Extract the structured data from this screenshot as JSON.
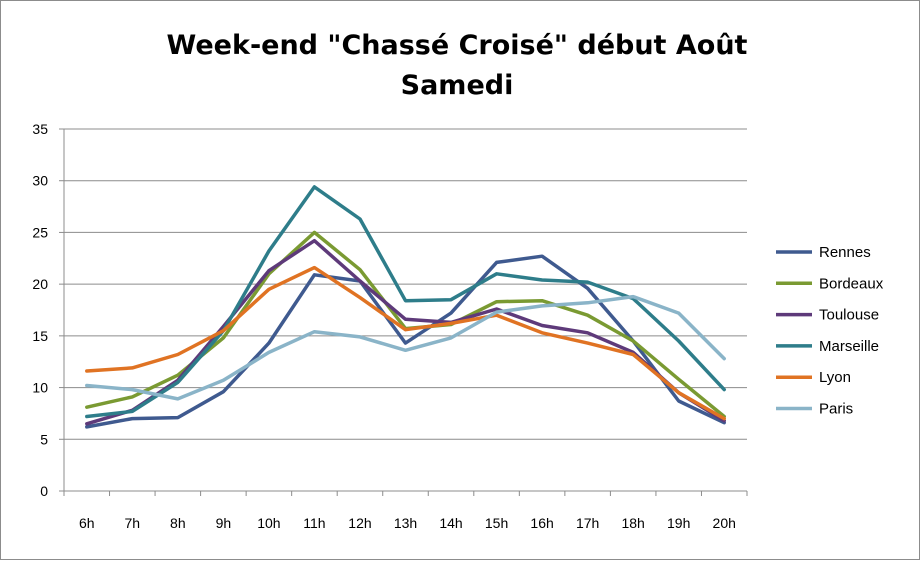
{
  "chart_data": {
    "type": "line",
    "title": "Week-end \"Chassé Croisé\" début Août",
    "subtitle": "Samedi",
    "x": [
      "6h",
      "7h",
      "8h",
      "9h",
      "10h",
      "11h",
      "12h",
      "13h",
      "14h",
      "15h",
      "16h",
      "17h",
      "18h",
      "19h",
      "20h"
    ],
    "ylim": [
      0,
      35
    ],
    "yticks": [
      0,
      5,
      10,
      15,
      20,
      25,
      30,
      35
    ],
    "grid": true,
    "legend_position": "right",
    "series": [
      {
        "name": "Rennes",
        "color": "#3f5a8f",
        "values": [
          6.2,
          7.0,
          7.1,
          9.6,
          14.3,
          20.9,
          20.3,
          14.3,
          17.2,
          22.1,
          22.7,
          19.6,
          14.5,
          8.7,
          6.6
        ]
      },
      {
        "name": "Bordeaux",
        "color": "#7a9a32",
        "values": [
          8.1,
          9.1,
          11.2,
          14.8,
          21.0,
          25.0,
          21.4,
          15.7,
          16.1,
          18.3,
          18.4,
          17.0,
          14.5,
          10.8,
          7.2
        ]
      },
      {
        "name": "Toulouse",
        "color": "#5e3a7a",
        "values": [
          6.5,
          7.8,
          10.7,
          15.9,
          21.3,
          24.2,
          20.3,
          16.6,
          16.3,
          17.6,
          16.0,
          15.3,
          13.4,
          9.5,
          6.8
        ]
      },
      {
        "name": "Marseille",
        "color": "#2e7d8a",
        "values": [
          7.2,
          7.7,
          10.5,
          15.5,
          23.2,
          29.4,
          26.3,
          18.4,
          18.5,
          21.0,
          20.4,
          20.2,
          18.6,
          14.5,
          9.8
        ]
      },
      {
        "name": "Lyon",
        "color": "#e07323",
        "values": [
          11.6,
          11.9,
          13.2,
          15.5,
          19.5,
          21.6,
          18.7,
          15.6,
          16.2,
          17.0,
          15.3,
          14.3,
          13.2,
          9.5,
          7.0
        ]
      },
      {
        "name": "Paris",
        "color": "#8ab4c8",
        "values": [
          10.2,
          9.8,
          8.9,
          10.7,
          13.4,
          15.4,
          14.9,
          13.6,
          14.8,
          17.3,
          17.9,
          18.2,
          18.8,
          17.2,
          12.8
        ]
      }
    ]
  }
}
